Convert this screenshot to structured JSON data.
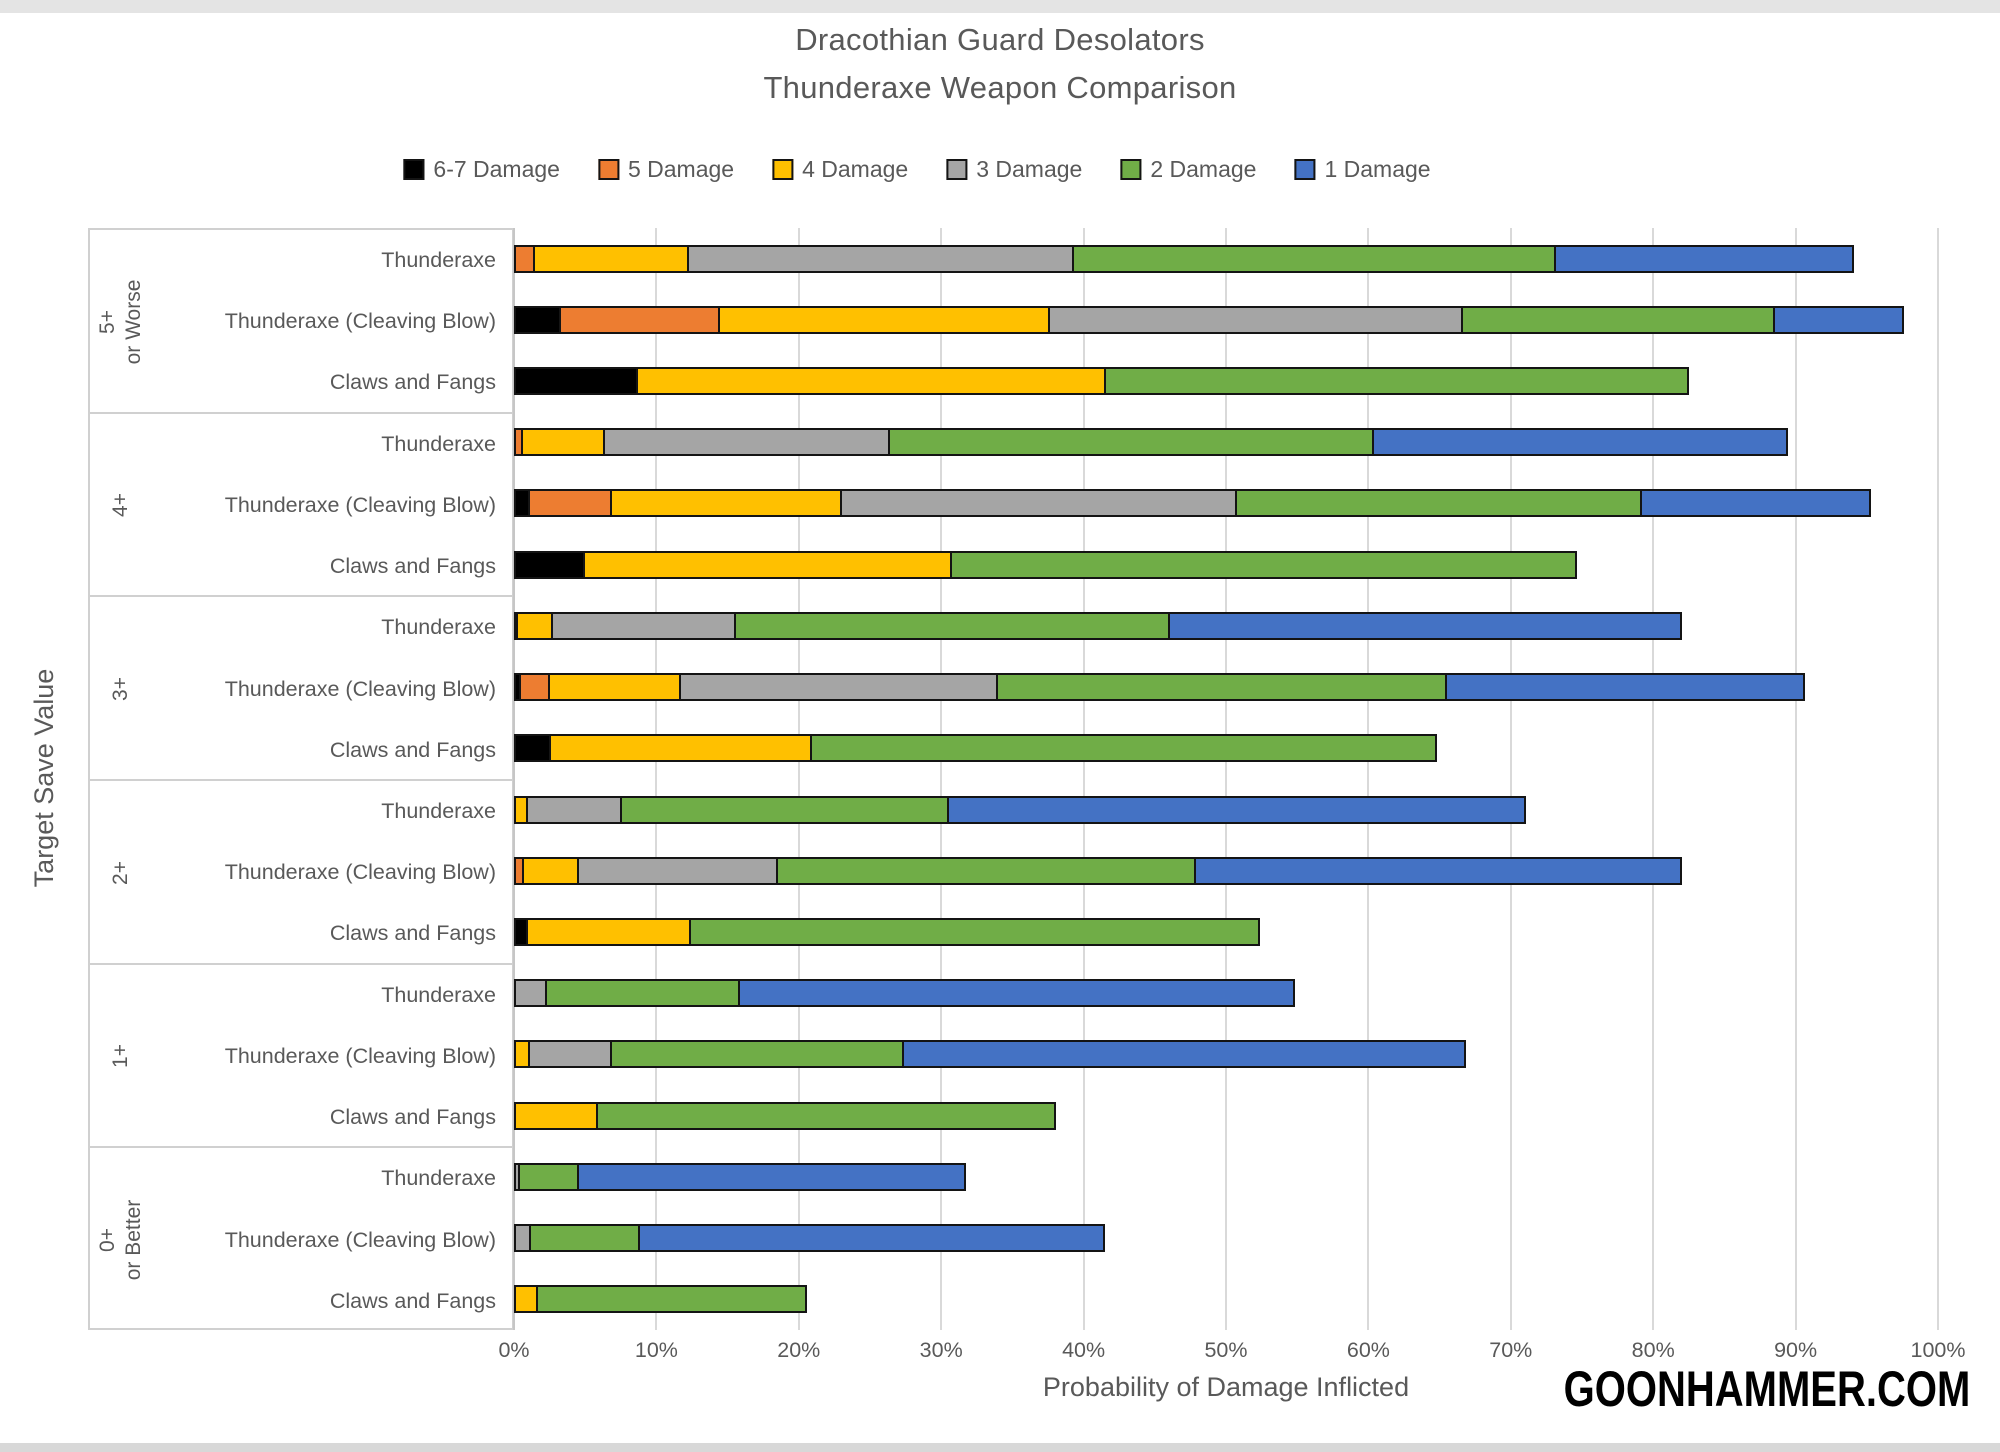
{
  "page": {
    "watermark": "GOONHAMMER.COM"
  },
  "chart_data": {
    "type": "bar",
    "orientation": "horizontal",
    "stacked": true,
    "title_line1": "Dracothian Guard Desolators",
    "title_line2": "Thunderaxe Weapon Comparison",
    "xlabel": "Probability of Damage Inflicted",
    "ylabel": "Target Save Value",
    "xlim": [
      0,
      100
    ],
    "x_ticks": [
      "0%",
      "10%",
      "20%",
      "30%",
      "40%",
      "50%",
      "60%",
      "70%",
      "80%",
      "90%",
      "100%"
    ],
    "grid": true,
    "legend_position": "top",
    "series": [
      {
        "key": "d67",
        "label": "6-7 Damage",
        "color": "#000000"
      },
      {
        "key": "d5",
        "label": "5 Damage",
        "color": "#ED7D31"
      },
      {
        "key": "d4",
        "label": "4 Damage",
        "color": "#FFC000"
      },
      {
        "key": "d3",
        "label": "3 Damage",
        "color": "#A5A5A5"
      },
      {
        "key": "d2",
        "label": "2 Damage",
        "color": "#70AD47"
      },
      {
        "key": "d1",
        "label": "1 Damage",
        "color": "#4472C4"
      }
    ],
    "groups": [
      {
        "save": "5+ or Worse",
        "label_lines": [
          "5+",
          "or Worse"
        ],
        "rows": [
          {
            "label": "Thunderaxe",
            "values": {
              "d5": 1.5,
              "d4": 10.9,
              "d3": 27.2,
              "d2": 34.0,
              "d1": 21.1
            }
          },
          {
            "label": "Thunderaxe (Cleaving Blow)",
            "values": {
              "d67": 3.3,
              "d5": 11.3,
              "d4": 23.3,
              "d3": 29.2,
              "d2": 22.0,
              "d1": 9.2
            }
          },
          {
            "label": "Claws and Fangs",
            "values": {
              "d67": 8.7,
              "d4": 33.0,
              "d2": 41.1
            }
          }
        ]
      },
      {
        "save": "4+",
        "label_lines": [
          "4+"
        ],
        "rows": [
          {
            "label": "Thunderaxe",
            "values": {
              "d5": 0.6,
              "d4": 5.9,
              "d3": 20.2,
              "d2": 34.1,
              "d1": 29.2
            }
          },
          {
            "label": "Thunderaxe (Cleaving Blow)",
            "values": {
              "d67": 1.1,
              "d5": 5.9,
              "d4": 16.3,
              "d3": 27.9,
              "d2": 28.6,
              "d1": 16.2
            }
          },
          {
            "label": "Claws and Fangs",
            "values": {
              "d67": 5.0,
              "d4": 25.9,
              "d2": 44.0
            }
          }
        ]
      },
      {
        "save": "3+",
        "label_lines": [
          "3+"
        ],
        "rows": [
          {
            "label": "Thunderaxe",
            "values": {
              "d5": 0.3,
              "d4": 2.6,
              "d3": 13.0,
              "d2": 30.6,
              "d1": 36.1
            }
          },
          {
            "label": "Thunderaxe (Cleaving Blow)",
            "values": {
              "d67": 0.5,
              "d5": 2.2,
              "d4": 9.3,
              "d3": 22.4,
              "d2": 31.7,
              "d1": 25.3
            }
          },
          {
            "label": "Claws and Fangs",
            "values": {
              "d67": 2.6,
              "d4": 18.5,
              "d2": 44.0
            }
          }
        ]
      },
      {
        "save": "2+",
        "label_lines": [
          "2+"
        ],
        "rows": [
          {
            "label": "Thunderaxe",
            "values": {
              "d4": 1.0,
              "d3": 6.7,
              "d2": 23.1,
              "d1": 40.7
            }
          },
          {
            "label": "Thunderaxe (Cleaving Blow)",
            "values": {
              "d5": 0.7,
              "d4": 4.0,
              "d3": 14.1,
              "d2": 29.5,
              "d1": 34.3
            }
          },
          {
            "label": "Claws and Fangs",
            "values": {
              "d67": 1.0,
              "d4": 11.6,
              "d2": 40.1
            }
          }
        ]
      },
      {
        "save": "1+",
        "label_lines": [
          "1+"
        ],
        "rows": [
          {
            "label": "Thunderaxe",
            "values": {
              "d3": 2.3,
              "d2": 13.7,
              "d1": 39.1
            }
          },
          {
            "label": "Thunderaxe (Cleaving Blow)",
            "values": {
              "d4": 1.1,
              "d3": 5.9,
              "d2": 20.7,
              "d1": 39.6
            }
          },
          {
            "label": "Claws and Fangs",
            "values": {
              "d4": 5.9,
              "d2": 32.3
            }
          }
        ]
      },
      {
        "save": "0+ or Better",
        "label_lines": [
          "0+",
          "or Better"
        ],
        "rows": [
          {
            "label": "Thunderaxe",
            "values": {
              "d3": 0.4,
              "d2": 4.3,
              "d1": 27.3
            }
          },
          {
            "label": "Thunderaxe (Cleaving Blow)",
            "values": {
              "d3": 1.2,
              "d2": 7.8,
              "d1": 32.8
            }
          },
          {
            "label": "Claws and Fangs",
            "values": {
              "d4": 1.7,
              "d2": 19.0
            }
          }
        ]
      }
    ]
  }
}
